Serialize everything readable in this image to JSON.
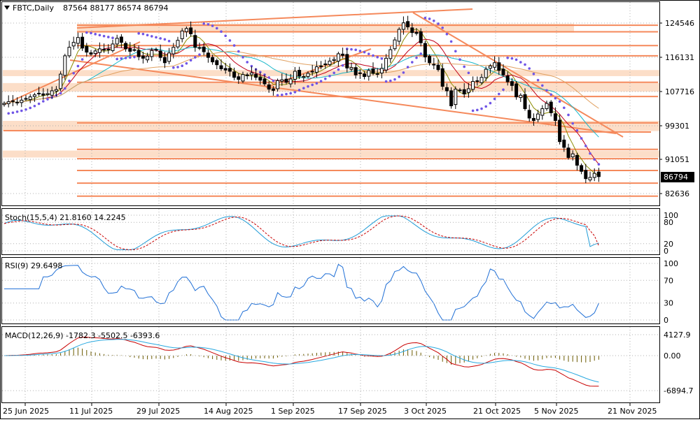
{
  "header": {
    "symbol": "FBTC,Daily",
    "ohlc": "87564 88177 86574 86794"
  },
  "colors": {
    "bull": "#ffffff",
    "bear": "#000000",
    "sr_line": "#f5895b",
    "zone": "#fbd3b6",
    "ma_fast": "#8b8b00",
    "ma_mid": "#c0001a",
    "ma_slow": "#18b7c9",
    "ma_long": "#e0a060",
    "psar": "#6f55e6",
    "stoch_main": "#1f9bd6",
    "stoch_signal": "#c80000",
    "rsi": "#1f6fd6",
    "macd_hist": "#6b5a00",
    "macd_signal_line": "#c80000",
    "macd_main_line": "#29a9e0"
  },
  "chart_data": {
    "type": "candlestick",
    "main": {
      "y_ticks": [
        "124546",
        "116131",
        "107716",
        "99301",
        "91051",
        "82636"
      ],
      "last_price_label": "86794",
      "ylim": [
        79000,
        129500
      ]
    },
    "x_ticks": [
      "25 Jun 2025",
      "11 Jul 2025",
      "29 Jul 2025",
      "14 Aug 2025",
      "1 Sep 2025",
      "17 Sep 2025",
      "3 Oct 2025",
      "21 Oct 2025",
      "5 Nov 2025",
      "21 Nov 2025"
    ],
    "closes": [
      104800,
      105200,
      105400,
      105000,
      105600,
      106000,
      106400,
      106900,
      107300,
      106800,
      107200,
      107900,
      108200,
      112000,
      116500,
      118600,
      119800,
      121000,
      118400,
      117400,
      116900,
      117700,
      118200,
      117900,
      118100,
      119400,
      120800,
      119800,
      118200,
      117600,
      118000,
      116300,
      115900,
      116400,
      117800,
      118000,
      116100,
      114800,
      117200,
      118600,
      120300,
      122600,
      123200,
      121900,
      118600,
      118400,
      117500,
      116100,
      115000,
      114300,
      113300,
      113000,
      112700,
      111200,
      110700,
      111900,
      111600,
      112300,
      111200,
      110500,
      109600,
      108300,
      108000,
      110400,
      110600,
      110000,
      110800,
      112700,
      111500,
      111400,
      112200,
      112700,
      113800,
      114000,
      114500,
      115200,
      115600,
      117000,
      116600,
      113500,
      113600,
      111800,
      112300,
      111400,
      112900,
      112200,
      112100,
      113400,
      115900,
      118000,
      120400,
      123000,
      124600,
      123600,
      122200,
      122000,
      119700,
      116200,
      114800,
      114300,
      113100,
      109000,
      107900,
      104200,
      108300,
      108100,
      107100,
      108400,
      110200,
      110300,
      111200,
      113200,
      114000,
      114800,
      112900,
      111800,
      110100,
      109200,
      106400,
      106800,
      103500,
      101200,
      100600,
      102200,
      103500,
      104800,
      102500,
      100600,
      95400,
      94000,
      91500,
      92400,
      89600,
      88100,
      86300,
      86600,
      87600,
      86800
    ],
    "stochastic": {
      "label": "Stoch(15,5,4) 21.8160 14.2245",
      "levels": [
        "100",
        "80",
        "20",
        "0"
      ]
    },
    "rsi": {
      "label": "RSI(9) 29.6498",
      "levels": [
        "100",
        "70",
        "30",
        "0"
      ]
    },
    "macd": {
      "label": "MACD(12,26,9) -1782.3 -5502.5 -6393.6",
      "levels": [
        "4127.9",
        "0.00",
        "-6894.7"
      ]
    }
  }
}
